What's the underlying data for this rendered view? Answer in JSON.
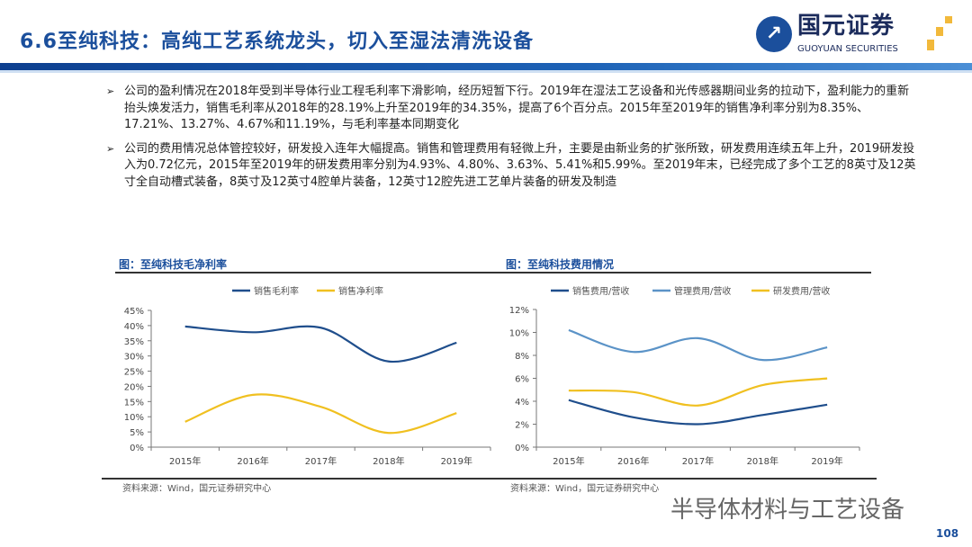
{
  "header": {
    "title": "6.6至纯科技：高纯工艺系统龙头，切入至湿法清洗设备",
    "logo_cn": "国元证券",
    "logo_en": "GUOYUAN SECURITIES"
  },
  "bullets": [
    "公司的盈利情况在2018年受到半导体行业工程毛利率下滑影响，经历短暂下行。2019年在湿法工艺设备和光传感器期间业务的拉动下，盈利能力的重新抬头焕发活力，销售毛利率从2018年的28.19%上升至2019年的34.35%，提高了6个百分点。2015年至2019年的销售净利率分别为8.35%、17.21%、13.27%、4.67%和11.19%，与毛利率基本同期变化",
    "公司的费用情况总体管控较好，研发投入连年大幅提高。销售和管理费用有轻微上升，主要是由新业务的扩张所致，研发费用连续五年上升，2019研发投入为0.72亿元，2015年至2019年的研发费用率分别为4.93%、4.80%、3.63%、5.41%和5.99%。至2019年末，已经完成了多个工艺的8英寸及12英寸全自动槽式装备，8英寸及12英寸4腔单片装备，12英寸12腔先进工艺单片装备的研发及制造"
  ],
  "chart_data": [
    {
      "type": "line",
      "title": "图：至纯科技毛净利率",
      "source": "资料来源：Wind，国元证券研究中心",
      "categories": [
        "2015年",
        "2016年",
        "2017年",
        "2018年",
        "2019年"
      ],
      "yticks": [
        "0%",
        "5%",
        "10%",
        "15%",
        "20%",
        "25%",
        "30%",
        "35%",
        "40%",
        "45%"
      ],
      "ylim": [
        0,
        45
      ],
      "series": [
        {
          "name": "销售毛利率",
          "color": "#1f4e8c",
          "values": [
            39.7,
            37.8,
            39.3,
            28.19,
            34.35
          ]
        },
        {
          "name": "销售净利率",
          "color": "#f0c020",
          "values": [
            8.35,
            17.21,
            13.27,
            4.67,
            11.19
          ]
        }
      ],
      "legend": "top"
    },
    {
      "type": "line",
      "title": "图：至纯科技费用情况",
      "source": "资料来源：Wind，国元证券研究中心",
      "categories": [
        "2015年",
        "2016年",
        "2017年",
        "2018年",
        "2019年"
      ],
      "yticks": [
        "0%",
        "2%",
        "4%",
        "6%",
        "8%",
        "10%",
        "12%"
      ],
      "ylim": [
        0,
        12
      ],
      "series": [
        {
          "name": "销售费用/营收",
          "color": "#1f4e8c",
          "values": [
            4.1,
            2.6,
            2.0,
            2.8,
            3.7
          ]
        },
        {
          "name": "管理费用/营收",
          "color": "#5b93c7",
          "values": [
            10.2,
            8.3,
            9.5,
            7.6,
            8.7
          ]
        },
        {
          "name": "研发费用/营收",
          "color": "#f0c020",
          "values": [
            4.93,
            4.8,
            3.63,
            5.41,
            5.99
          ]
        }
      ],
      "legend": "top"
    }
  ],
  "watermark": "半导体材料与工艺设备",
  "page_number": "108"
}
